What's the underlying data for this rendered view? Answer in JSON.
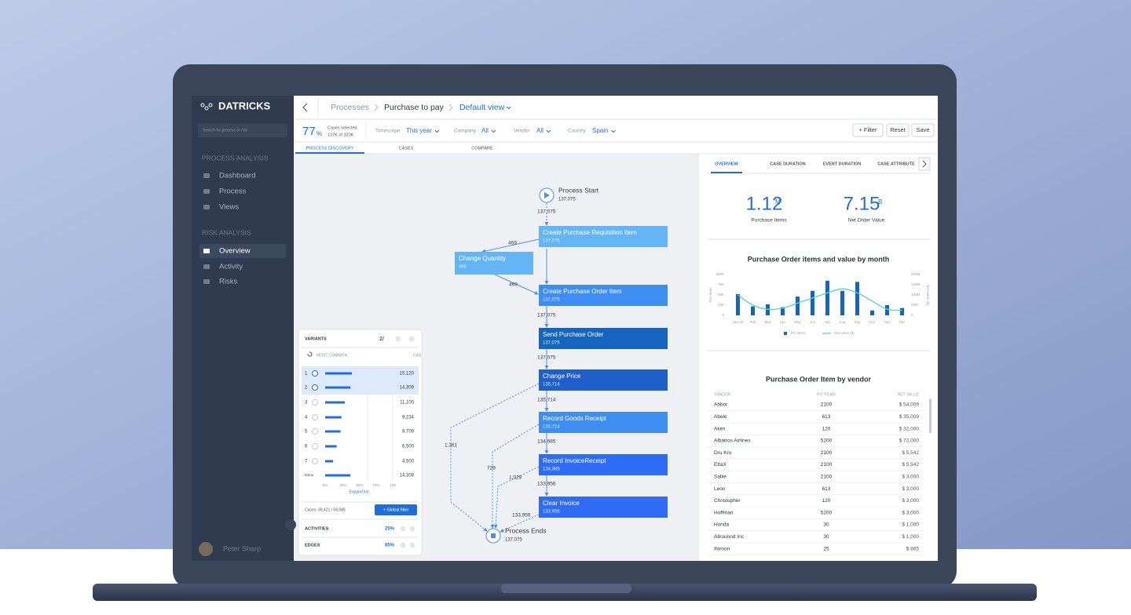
{
  "sidebar": {
    "brand": "DATRICKS",
    "search_placeholder": "Search for process or risk",
    "sections": [
      {
        "title": "PROCESS ANALYSIS",
        "items": [
          "Dashboard",
          "Process",
          "Views"
        ]
      },
      {
        "title": "RISK ANALYSIS",
        "items": [
          "Overview",
          "Activity",
          "Risks"
        ]
      }
    ],
    "user": "Peter Sharp"
  },
  "breadcrumb": [
    "Processes",
    "Purchase to pay",
    "Default view"
  ],
  "filters": {
    "percent": "77",
    "percent_unit": "%",
    "cases_label": "Cases selected",
    "cases_value": "137K of 320K",
    "items": [
      {
        "label": "Timescope",
        "value": "This year"
      },
      {
        "label": "Company",
        "value": "All"
      },
      {
        "label": "Vendor",
        "value": "All"
      },
      {
        "label": "Country",
        "value": "Spain"
      }
    ],
    "buttons": [
      "+ Filter",
      "Reset",
      "Save"
    ]
  },
  "tabs": [
    "PROCESS DISCOVERY",
    "CASES",
    "COMPARE"
  ],
  "process_map": {
    "start": {
      "label": "Process Start",
      "count": "137,075"
    },
    "nodes": [
      {
        "label": "Create Purchase Requisition Item",
        "count": "137,075"
      },
      {
        "label": "Change Quantity",
        "count": "469"
      },
      {
        "label": "Create Purchase Order Item",
        "count": "137,075"
      },
      {
        "label": "Send Purchase Order",
        "count": "137,075"
      },
      {
        "label": "Change Price",
        "count": "135,714"
      },
      {
        "label": "Record Goods Receipt",
        "count": "135,714"
      },
      {
        "label": "Record InvoiceReceipt",
        "count": "134,985"
      },
      {
        "label": "Clear Invoice",
        "count": "133,956"
      }
    ],
    "end": {
      "label": "Process Ends",
      "count": "137,075"
    },
    "edge_labels": [
      "137,075",
      "469",
      "469",
      "137,075",
      "137,075",
      "135,714",
      "134,985",
      "133,956",
      "1,361",
      "729",
      "1,029",
      "133,956"
    ]
  },
  "variants": {
    "title": "VARIANTS",
    "selected": "2/",
    "sort": "MOST COMMON",
    "cases_header": "CAS",
    "rows": [
      {
        "rank": "1",
        "checked": true,
        "cases": "15,120"
      },
      {
        "rank": "2",
        "checked": true,
        "cases": "14,309"
      },
      {
        "rank": "3",
        "checked": false,
        "cases": "11,100"
      },
      {
        "rank": "4",
        "checked": false,
        "cases": "9,234"
      },
      {
        "rank": "5",
        "checked": false,
        "cases": "8,709"
      },
      {
        "rank": "6",
        "checked": false,
        "cases": "6,500"
      },
      {
        "rank": "7",
        "checked": false,
        "cases": "4,500"
      },
      {
        "rank": "0mns",
        "checked": false,
        "cases": "14,309"
      }
    ],
    "scale": [
      "0%",
      "25%",
      "50%",
      "75%",
      "100"
    ],
    "expand": "Expand list",
    "cases_summary": "Cases: 39,421 / 59,585",
    "global_filter": "+ Global filter",
    "activities": {
      "label": "ACTIVITIES",
      "value": "25%"
    },
    "edges": {
      "label": "EDGES",
      "value": "85%"
    }
  },
  "panel": {
    "tabs": [
      "OVERVIEW",
      "CASE DURATION",
      "EVENT DURATION",
      "CASE ATTRIBUTE"
    ],
    "kpis": [
      {
        "value": "1.12",
        "unit": "M",
        "label": "Purchase Items"
      },
      {
        "value": "7.15",
        "unit": "B",
        "label": "Net Order Value"
      }
    ]
  },
  "chart_data": {
    "type": "bar",
    "title": "Purchase Order items and value by month",
    "categories": [
      "Jan 20",
      "Feb",
      "Mar",
      "Apr",
      "May",
      "Jun",
      "July",
      "Aug",
      "Sep",
      "Oct",
      "Nov",
      "Dec"
    ],
    "series": [
      {
        "name": "PO Items",
        "color": "#1565c0",
        "type": "bar",
        "values": [
          52000,
          22000,
          27000,
          20000,
          46000,
          60000,
          85000,
          60000,
          82000,
          12000,
          25000,
          18000
        ]
      },
      {
        "name": "Net value ($)",
        "color": "#4dd9c5",
        "type": "line",
        "axis": "y2",
        "values": [
          100000000,
          50000000,
          30000000,
          35000000,
          60000000,
          85000000,
          110000000,
          130000000,
          110000000,
          70000000,
          30000000,
          25000000
        ]
      }
    ],
    "ylabel": "PO Items",
    "y2label": "Net value ($)",
    "ylim": [
      0,
      100000
    ],
    "yticks": [
      0,
      {
        "value": 25000,
        "label": "25K"
      },
      {
        "value": 50000,
        "label": "50K"
      },
      {
        "value": 75000,
        "label": "75K"
      },
      {
        "value": 100000,
        "label": "100K"
      }
    ],
    "y2lim": [
      0,
      200000000
    ],
    "y2ticks": [
      0,
      {
        "value": 50000000,
        "label": "50M"
      },
      {
        "value": 100000000,
        "label": "100M"
      },
      {
        "value": 150000000,
        "label": "150M"
      },
      {
        "value": 200000000,
        "label": "200M"
      }
    ],
    "grid": false
  },
  "vendor_table": {
    "title": "Purchase Order Item by vendor",
    "columns": [
      "VENDOR",
      "PO ITEMS",
      "NET VALUE"
    ],
    "rows": [
      [
        "Abbot",
        "2100",
        "$ 54,009"
      ],
      [
        "Abele",
        "613",
        "$ 35,009"
      ],
      [
        "Akim",
        "120",
        "$ 32,000"
      ],
      [
        "Albatros Airlines",
        "5200",
        "$ 72,000"
      ],
      [
        "Dru Kru",
        "2100",
        "$ 5,542"
      ],
      [
        "EttaX",
        "2100",
        "$ 5,542"
      ],
      [
        "Sallie",
        "2100",
        "$ 3,000"
      ],
      [
        "Leon",
        "613",
        "$ 3,000"
      ],
      [
        "Christopher",
        "120",
        "$ 3,000"
      ],
      [
        "Hoffman",
        "5200",
        "$ 3,000"
      ],
      [
        "Honda",
        "30",
        "$ 1,000"
      ],
      [
        "Allrounnd Inc",
        "30",
        "$ 1,000"
      ],
      [
        "Ifornon",
        "25",
        "$ 865"
      ]
    ]
  }
}
